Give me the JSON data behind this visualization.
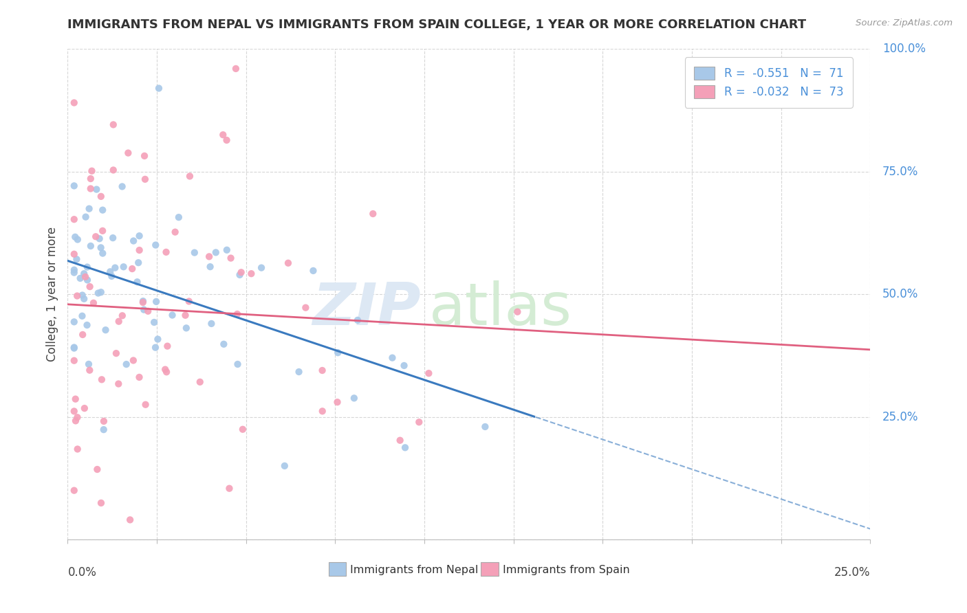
{
  "title": "IMMIGRANTS FROM NEPAL VS IMMIGRANTS FROM SPAIN COLLEGE, 1 YEAR OR MORE CORRELATION CHART",
  "source": "Source: ZipAtlas.com",
  "ylabel_label": "College, 1 year or more",
  "legend_nepal": "Immigrants from Nepal",
  "legend_spain": "Immigrants from Spain",
  "R_nepal": -0.551,
  "N_nepal": 71,
  "R_spain": -0.032,
  "N_spain": 73,
  "nepal_color": "#a8c8e8",
  "spain_color": "#f4a0b8",
  "nepal_line_color": "#3a7abf",
  "spain_line_color": "#e06080",
  "background_color": "#ffffff",
  "xmin": 0.0,
  "xmax": 0.25,
  "ymin": 0.0,
  "ymax": 1.0,
  "nepal_seed": 42,
  "spain_seed": 99,
  "right_axis_color": "#4a90d9",
  "title_color": "#333333",
  "source_color": "#999999",
  "watermark_zip_color": "#dde8f4",
  "watermark_atlas_color": "#d4ecd4"
}
